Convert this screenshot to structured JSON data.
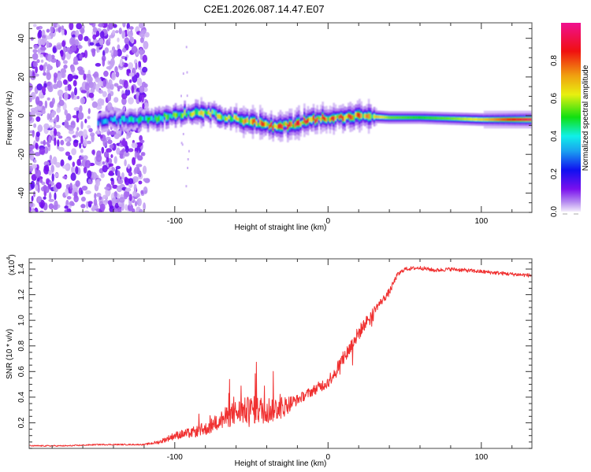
{
  "figure": {
    "title": "C2E1.2026.087.14.47.E07"
  },
  "chart_data": [
    {
      "type": "heatmap",
      "name": "spectrogram",
      "title": "C2E1.2026.087.14.47.E07",
      "xlabel": "Height of straight line (km)",
      "ylabel": "Frequency (Hz)",
      "xlim": [
        -195,
        133
      ],
      "ylim": [
        -50,
        48
      ],
      "x_ticks": [
        -100,
        0,
        100
      ],
      "x_tick_labels": [
        "-100",
        "0",
        "100"
      ],
      "x_minor_step": 20,
      "y_ticks": [
        -40,
        -20,
        0,
        20,
        40
      ],
      "y_tick_labels": [
        "-40",
        "-20",
        "0",
        "20",
        "40"
      ],
      "y_minor_step": 5,
      "grid": false,
      "colorbar": {
        "label": "Normalized spectral amplitude",
        "range": [
          0,
          1
        ],
        "ticks": [
          0.0,
          0.2,
          0.4,
          0.6,
          0.8
        ],
        "tick_labels": [
          "0.0",
          "0.2",
          "0.4",
          "0.6",
          "0.8"
        ],
        "colormap_stops": [
          {
            "v": 0.0,
            "color": "#f2ecfb"
          },
          {
            "v": 0.05,
            "color": "#b68cf0"
          },
          {
            "v": 0.12,
            "color": "#7a10ee"
          },
          {
            "v": 0.22,
            "color": "#1010f0"
          },
          {
            "v": 0.32,
            "color": "#1aa0f0"
          },
          {
            "v": 0.4,
            "color": "#10f0e8"
          },
          {
            "v": 0.5,
            "color": "#10e010"
          },
          {
            "v": 0.62,
            "color": "#e8f010"
          },
          {
            "v": 0.72,
            "color": "#f0a010"
          },
          {
            "v": 0.85,
            "color": "#f01010"
          },
          {
            "v": 1.0,
            "color": "#f01090"
          }
        ]
      },
      "signal_ridge": {
        "description": "Dominant frequency ridge vs height",
        "x": [
          -150,
          -130,
          -110,
          -95,
          -80,
          -65,
          -50,
          -35,
          -20,
          -10,
          0,
          10,
          20,
          40,
          60,
          80,
          100,
          120,
          133
        ],
        "frequency_hz": [
          -3,
          -2,
          -1,
          1,
          2,
          -1,
          -3,
          -6,
          -4,
          -2,
          -1,
          -1,
          0,
          -1,
          -1,
          -1.5,
          -2,
          -2,
          -2
        ],
        "peak_amplitude": [
          0.35,
          0.45,
          0.55,
          0.6,
          0.7,
          0.65,
          0.8,
          0.9,
          0.9,
          0.9,
          0.85,
          0.9,
          0.85,
          0.55,
          0.5,
          0.55,
          0.65,
          0.85,
          0.95
        ]
      },
      "noise_region": {
        "x_range": [
          -195,
          -118
        ],
        "frequency_range": [
          -50,
          48
        ],
        "amplitude_range": [
          0.0,
          0.15
        ]
      }
    },
    {
      "type": "line",
      "name": "snr",
      "xlabel": "Height of straight line (km)",
      "ylabel": "SNR (10 * v/v)",
      "y_scale_label": "(x10",
      "y_scale_exponent": "4",
      "xlim": [
        -195,
        133
      ],
      "ylim": [
        0,
        1.48
      ],
      "x_ticks": [
        -100,
        0,
        100
      ],
      "x_tick_labels": [
        "-100",
        "0",
        "100"
      ],
      "x_minor_step": 20,
      "y_ticks": [
        0.2,
        0.4,
        0.6,
        0.8,
        1.0,
        1.2,
        1.4
      ],
      "y_tick_labels": [
        "0.2",
        "0.4",
        "0.6",
        "0.8",
        "1.0",
        "1.2",
        "1.4"
      ],
      "y_minor_step": 0.05,
      "grid": false,
      "series": [
        {
          "name": "SNR",
          "color": "#f03030",
          "x": [
            -195,
            -170,
            -150,
            -140,
            -130,
            -120,
            -110,
            -100,
            -90,
            -80,
            -70,
            -60,
            -50,
            -40,
            -30,
            -20,
            -10,
            0,
            10,
            20,
            30,
            40,
            45,
            50,
            60,
            70,
            80,
            90,
            100,
            110,
            120,
            133
          ],
          "y": [
            0.02,
            0.02,
            0.03,
            0.03,
            0.03,
            0.03,
            0.05,
            0.1,
            0.12,
            0.15,
            0.22,
            0.28,
            0.3,
            0.3,
            0.32,
            0.38,
            0.45,
            0.52,
            0.7,
            0.9,
            1.08,
            1.22,
            1.35,
            1.4,
            1.41,
            1.39,
            1.4,
            1.39,
            1.38,
            1.37,
            1.36,
            1.35
          ],
          "noise_amp": [
            0.01,
            0.01,
            0.01,
            0.01,
            0.01,
            0.01,
            0.03,
            0.06,
            0.08,
            0.1,
            0.15,
            0.2,
            0.22,
            0.22,
            0.18,
            0.08,
            0.08,
            0.1,
            0.12,
            0.12,
            0.06,
            0.06,
            0.04,
            0.03,
            0.03,
            0.03,
            0.03,
            0.03,
            0.03,
            0.03,
            0.03,
            0.03
          ]
        }
      ]
    }
  ]
}
